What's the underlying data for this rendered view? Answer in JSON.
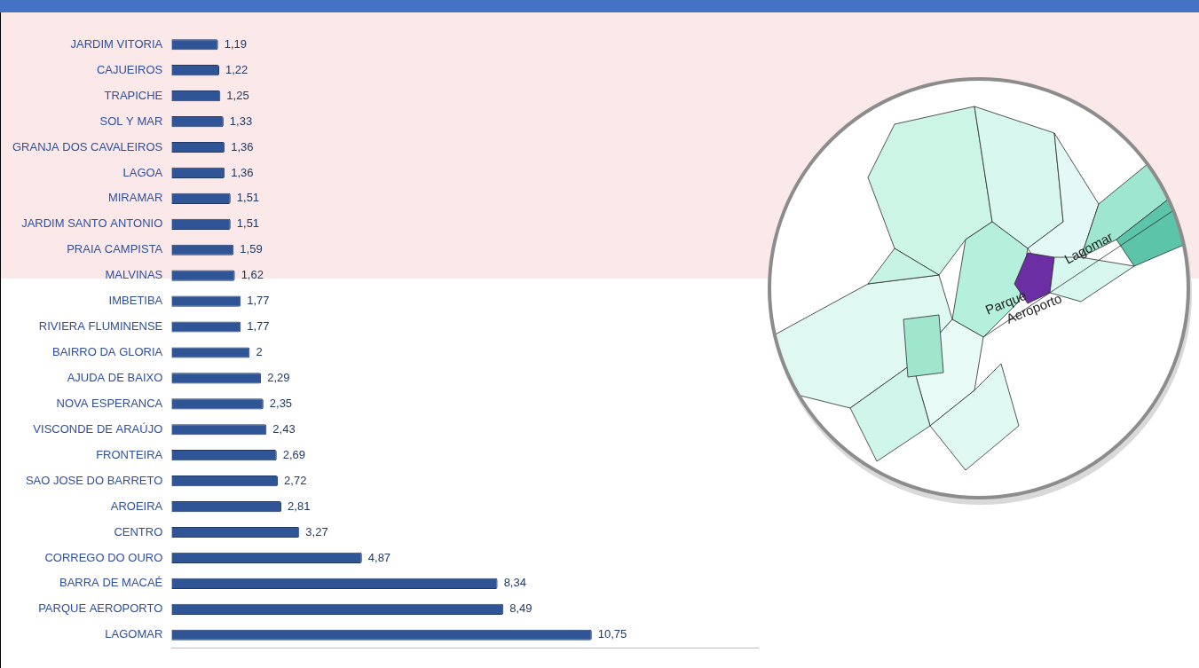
{
  "chart_data": {
    "type": "bar",
    "orientation": "horizontal",
    "categories": [
      "JARDIM VITORIA",
      "CAJUEIROS",
      "TRAPICHE",
      "SOL Y MAR",
      "GRANJA DOS CAVALEIROS",
      "LAGOA",
      "MIRAMAR",
      "JARDIM SANTO ANTONIO",
      "PRAIA CAMPISTA",
      "MALVINAS",
      "IMBETIBA",
      "RIVIERA FLUMINENSE",
      "BAIRRO DA GLORIA",
      "AJUDA DE BAIXO",
      "NOVA ESPERANCA",
      "VISCONDE DE ARAÚJO",
      "FRONTEIRA",
      "SAO JOSE DO BARRETO",
      "AROEIRA",
      "CENTRO",
      "CORREGO DO OURO",
      "BARRA DE MACAÉ",
      "PARQUE AEROPORTO",
      "LAGOMAR"
    ],
    "values": [
      1.19,
      1.22,
      1.25,
      1.33,
      1.36,
      1.36,
      1.51,
      1.51,
      1.59,
      1.62,
      1.77,
      1.77,
      2,
      2.29,
      2.35,
      2.43,
      2.69,
      2.72,
      2.81,
      3.27,
      4.87,
      8.34,
      8.49,
      10.75
    ],
    "value_labels": [
      "1,19",
      "1,22",
      "1,25",
      "1,33",
      "1,36",
      "1,36",
      "1,51",
      "1,51",
      "1,59",
      "1,62",
      "1,77",
      "1,77",
      "2",
      "2,29",
      "2,35",
      "2,43",
      "2,69",
      "2,72",
      "2,81",
      "3,27",
      "4,87",
      "8,34",
      "8,49",
      "10,75"
    ],
    "color": "#2f5597",
    "xlim": [
      0,
      15
    ],
    "grid": false,
    "data_labels": true,
    "tick_labels": "y",
    "annotations": [
      "Lagomar",
      "Parque Aeroporto"
    ]
  }
}
